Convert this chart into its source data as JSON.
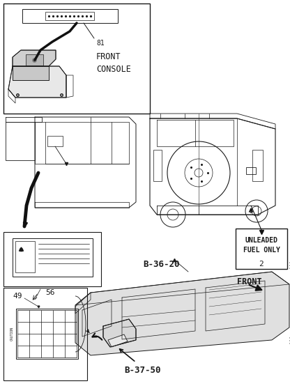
{
  "bg_color": "#ffffff",
  "lc": "#1a1a1a",
  "lc2": "#000000",
  "labels": {
    "front_console": "FRONT\nCONSOLE",
    "num_81": "81",
    "num_56": "56",
    "num_2": "2",
    "num_49": "49",
    "unleaded_line1": "UNLEADED",
    "unleaded_line2": "FUEL ONLY",
    "b3620": "B-36-20",
    "b3750": "B-37-50",
    "front": "FRONT",
    "caution": "CAUTION"
  },
  "figsize": [
    4.16,
    5.54
  ],
  "dpi": 100
}
